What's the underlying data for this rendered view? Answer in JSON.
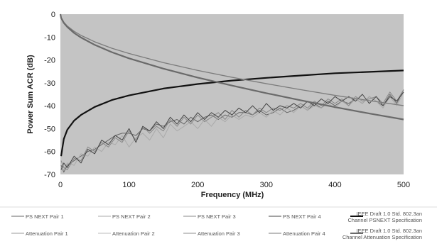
{
  "chart_data": {
    "type": "line",
    "title": "",
    "xlabel": "Frequency (MHz)",
    "ylabel": "Power Sum ACR (dB)",
    "xlim": [
      0,
      500
    ],
    "ylim": [
      -70,
      0
    ],
    "x_ticks": [
      "0",
      "100",
      "200",
      "300",
      "400",
      "500"
    ],
    "y_ticks": [
      "0",
      "-10",
      "-20",
      "-30",
      "-40",
      "-50",
      "-60",
      "-70"
    ],
    "grid": false,
    "background_color": "#c4c4c4",
    "legend_position": "bottom",
    "series": [
      {
        "name": "PS NEXT Pair 1",
        "color": "#666666",
        "values": [
          [
            1,
            -66
          ],
          [
            5,
            -69
          ],
          [
            10,
            -66
          ],
          [
            20,
            -64
          ],
          [
            30,
            -62
          ],
          [
            40,
            -60
          ],
          [
            50,
            -59
          ],
          [
            60,
            -57
          ],
          [
            70,
            -55
          ],
          [
            80,
            -53
          ],
          [
            90,
            -52
          ],
          [
            100,
            -52
          ],
          [
            110,
            -53
          ],
          [
            120,
            -50
          ],
          [
            130,
            -51
          ],
          [
            140,
            -48
          ],
          [
            150,
            -49
          ],
          [
            160,
            -47
          ],
          [
            170,
            -46
          ],
          [
            180,
            -48
          ],
          [
            190,
            -45
          ],
          [
            200,
            -47
          ],
          [
            210,
            -45
          ],
          [
            220,
            -44
          ],
          [
            230,
            -46
          ],
          [
            240,
            -44
          ],
          [
            250,
            -45
          ],
          [
            260,
            -43
          ],
          [
            270,
            -43
          ],
          [
            280,
            -44
          ],
          [
            290,
            -42
          ],
          [
            300,
            -44
          ],
          [
            310,
            -43
          ],
          [
            320,
            -41
          ],
          [
            330,
            -43
          ],
          [
            340,
            -42
          ],
          [
            350,
            -40
          ],
          [
            360,
            -42
          ],
          [
            370,
            -39
          ],
          [
            380,
            -41
          ],
          [
            390,
            -38
          ],
          [
            400,
            -40
          ],
          [
            410,
            -38
          ],
          [
            420,
            -39
          ],
          [
            430,
            -37
          ],
          [
            440,
            -39
          ],
          [
            450,
            -36
          ],
          [
            460,
            -38
          ],
          [
            470,
            -40
          ],
          [
            480,
            -35
          ],
          [
            490,
            -39
          ],
          [
            500,
            -33
          ]
        ]
      },
      {
        "name": "PS NEXT Pair 2",
        "color": "#aaaaaa",
        "values": [
          [
            1,
            -67
          ],
          [
            5,
            -68
          ],
          [
            10,
            -65
          ],
          [
            20,
            -66
          ],
          [
            30,
            -61
          ],
          [
            40,
            -62
          ],
          [
            50,
            -58
          ],
          [
            60,
            -60
          ],
          [
            70,
            -56
          ],
          [
            80,
            -57
          ],
          [
            90,
            -53
          ],
          [
            100,
            -58
          ],
          [
            110,
            -54
          ],
          [
            120,
            -52
          ],
          [
            130,
            -55
          ],
          [
            140,
            -50
          ],
          [
            150,
            -54
          ],
          [
            160,
            -48
          ],
          [
            170,
            -51
          ],
          [
            180,
            -49
          ],
          [
            190,
            -47
          ],
          [
            200,
            -50
          ],
          [
            210,
            -46
          ],
          [
            220,
            -49
          ],
          [
            230,
            -45
          ],
          [
            240,
            -47
          ],
          [
            250,
            -44
          ],
          [
            260,
            -46
          ],
          [
            270,
            -44
          ],
          [
            280,
            -45
          ],
          [
            290,
            -43
          ],
          [
            300,
            -45
          ],
          [
            310,
            -42
          ],
          [
            320,
            -44
          ],
          [
            330,
            -41
          ],
          [
            340,
            -43
          ],
          [
            350,
            -40
          ],
          [
            360,
            -42
          ],
          [
            370,
            -40
          ],
          [
            380,
            -41
          ],
          [
            390,
            -39
          ],
          [
            400,
            -41
          ],
          [
            410,
            -38
          ],
          [
            420,
            -40
          ],
          [
            430,
            -37
          ],
          [
            440,
            -39
          ],
          [
            450,
            -36
          ],
          [
            460,
            -38
          ],
          [
            470,
            -41
          ],
          [
            480,
            -36
          ],
          [
            490,
            -40
          ],
          [
            500,
            -34
          ]
        ]
      },
      {
        "name": "PS NEXT Pair 3",
        "color": "#888888",
        "values": [
          [
            1,
            -64
          ],
          [
            5,
            -67
          ],
          [
            10,
            -68
          ],
          [
            20,
            -63
          ],
          [
            30,
            -64
          ],
          [
            40,
            -58
          ],
          [
            50,
            -60
          ],
          [
            60,
            -56
          ],
          [
            70,
            -58
          ],
          [
            80,
            -54
          ],
          [
            90,
            -56
          ],
          [
            100,
            -51
          ],
          [
            110,
            -55
          ],
          [
            120,
            -49
          ],
          [
            130,
            -52
          ],
          [
            140,
            -49
          ],
          [
            150,
            -51
          ],
          [
            160,
            -46
          ],
          [
            170,
            -49
          ],
          [
            180,
            -45
          ],
          [
            190,
            -48
          ],
          [
            200,
            -44
          ],
          [
            210,
            -47
          ],
          [
            220,
            -45
          ],
          [
            230,
            -43
          ],
          [
            240,
            -46
          ],
          [
            250,
            -42
          ],
          [
            260,
            -45
          ],
          [
            270,
            -42
          ],
          [
            280,
            -44
          ],
          [
            290,
            -41
          ],
          [
            300,
            -43
          ],
          [
            310,
            -41
          ],
          [
            320,
            -42
          ],
          [
            330,
            -40
          ],
          [
            340,
            -41
          ],
          [
            350,
            -39
          ],
          [
            360,
            -41
          ],
          [
            370,
            -38
          ],
          [
            380,
            -40
          ],
          [
            390,
            -37
          ],
          [
            400,
            -39
          ],
          [
            410,
            -37
          ],
          [
            420,
            -40
          ],
          [
            430,
            -36
          ],
          [
            440,
            -38
          ],
          [
            450,
            -37
          ],
          [
            460,
            -36
          ],
          [
            470,
            -39
          ],
          [
            480,
            -34
          ],
          [
            490,
            -38
          ],
          [
            500,
            -33
          ]
        ]
      },
      {
        "name": "PS NEXT Pair 4",
        "color": "#444444",
        "values": [
          [
            1,
            -68
          ],
          [
            5,
            -65
          ],
          [
            10,
            -67
          ],
          [
            20,
            -62
          ],
          [
            30,
            -65
          ],
          [
            40,
            -59
          ],
          [
            50,
            -61
          ],
          [
            60,
            -55
          ],
          [
            70,
            -57
          ],
          [
            80,
            -53
          ],
          [
            90,
            -55
          ],
          [
            100,
            -50
          ],
          [
            110,
            -56
          ],
          [
            120,
            -49
          ],
          [
            130,
            -51
          ],
          [
            140,
            -47
          ],
          [
            150,
            -50
          ],
          [
            160,
            -45
          ],
          [
            170,
            -48
          ],
          [
            180,
            -44
          ],
          [
            190,
            -47
          ],
          [
            200,
            -43
          ],
          [
            210,
            -46
          ],
          [
            220,
            -43
          ],
          [
            230,
            -45
          ],
          [
            240,
            -42
          ],
          [
            250,
            -44
          ],
          [
            260,
            -41
          ],
          [
            270,
            -43
          ],
          [
            280,
            -40
          ],
          [
            290,
            -43
          ],
          [
            300,
            -39
          ],
          [
            310,
            -42
          ],
          [
            320,
            -40
          ],
          [
            330,
            -41
          ],
          [
            340,
            -39
          ],
          [
            350,
            -41
          ],
          [
            360,
            -38
          ],
          [
            370,
            -40
          ],
          [
            380,
            -37
          ],
          [
            390,
            -39
          ],
          [
            400,
            -36
          ],
          [
            410,
            -38
          ],
          [
            420,
            -36
          ],
          [
            430,
            -38
          ],
          [
            440,
            -35
          ],
          [
            450,
            -39
          ],
          [
            460,
            -36
          ],
          [
            470,
            -40
          ],
          [
            480,
            -36
          ],
          [
            490,
            -38
          ],
          [
            500,
            -34
          ]
        ]
      },
      {
        "name": "IEEE Draft 1.0 Std. 802.3an Channel PSNEXT Specification",
        "color": "#111111",
        "values": [
          [
            1,
            -62
          ],
          [
            5,
            -54.5
          ],
          [
            10,
            -50.5
          ],
          [
            20,
            -46.5
          ],
          [
            30,
            -44
          ],
          [
            50,
            -40.5
          ],
          [
            75,
            -37.5
          ],
          [
            100,
            -35.5
          ],
          [
            150,
            -32.5
          ],
          [
            200,
            -30.5
          ],
          [
            250,
            -29
          ],
          [
            300,
            -27.8
          ],
          [
            350,
            -26.8
          ],
          [
            400,
            -25.8
          ],
          [
            450,
            -25.2
          ],
          [
            500,
            -24.6
          ]
        ]
      },
      {
        "name": "Attenuation Pair 1",
        "color": "#999999",
        "values": [
          [
            0,
            0
          ],
          [
            1,
            -1.5
          ],
          [
            5,
            -3.5
          ],
          [
            10,
            -5.2
          ],
          [
            20,
            -7.5
          ],
          [
            30,
            -9.3
          ],
          [
            50,
            -12.1
          ],
          [
            75,
            -14.9
          ],
          [
            100,
            -17.2
          ],
          [
            150,
            -21.2
          ],
          [
            200,
            -24.6
          ],
          [
            250,
            -27.6
          ],
          [
            300,
            -30.4
          ],
          [
            350,
            -33.0
          ],
          [
            400,
            -35.5
          ],
          [
            450,
            -37.8
          ],
          [
            500,
            -40.0
          ]
        ]
      },
      {
        "name": "Attenuation Pair 2",
        "color": "#bbbbbb",
        "values": [
          [
            0,
            0
          ],
          [
            1,
            -1.6
          ],
          [
            5,
            -3.6
          ],
          [
            10,
            -5.3
          ],
          [
            20,
            -7.6
          ],
          [
            30,
            -9.4
          ],
          [
            50,
            -12.2
          ],
          [
            75,
            -15.0
          ],
          [
            100,
            -17.3
          ],
          [
            150,
            -21.3
          ],
          [
            200,
            -24.7
          ],
          [
            250,
            -27.7
          ],
          [
            300,
            -30.5
          ],
          [
            350,
            -33.1
          ],
          [
            400,
            -35.6
          ],
          [
            450,
            -37.9
          ],
          [
            500,
            -40.1
          ]
        ]
      },
      {
        "name": "Attenuation Pair 3",
        "color": "#8c8c8c",
        "values": [
          [
            0,
            0
          ],
          [
            1,
            -1.4
          ],
          [
            5,
            -3.4
          ],
          [
            10,
            -5.1
          ],
          [
            20,
            -7.4
          ],
          [
            30,
            -9.2
          ],
          [
            50,
            -12.0
          ],
          [
            75,
            -14.8
          ],
          [
            100,
            -17.1
          ],
          [
            150,
            -21.1
          ],
          [
            200,
            -24.5
          ],
          [
            250,
            -27.5
          ],
          [
            300,
            -30.3
          ],
          [
            350,
            -32.9
          ],
          [
            400,
            -35.4
          ],
          [
            450,
            -37.7
          ],
          [
            500,
            -39.9
          ]
        ]
      },
      {
        "name": "Attenuation Pair 4",
        "color": "#7a7a7a",
        "values": [
          [
            0,
            0
          ],
          [
            1,
            -1.5
          ],
          [
            5,
            -3.5
          ],
          [
            10,
            -5.2
          ],
          [
            20,
            -7.5
          ],
          [
            30,
            -9.3
          ],
          [
            50,
            -12.1
          ],
          [
            75,
            -14.9
          ],
          [
            100,
            -17.2
          ],
          [
            150,
            -21.2
          ],
          [
            200,
            -24.6
          ],
          [
            250,
            -27.6
          ],
          [
            300,
            -30.4
          ],
          [
            350,
            -33.0
          ],
          [
            400,
            -35.5
          ],
          [
            450,
            -37.8
          ],
          [
            500,
            -40.0
          ]
        ]
      },
      {
        "name": "IEEE Draft 1.0 Std. 802.3an Channel Attenuation Specification",
        "color": "#6a6a6a",
        "values": [
          [
            0,
            0
          ],
          [
            1,
            -1.6
          ],
          [
            5,
            -3.8
          ],
          [
            10,
            -5.6
          ],
          [
            20,
            -8.2
          ],
          [
            30,
            -10.2
          ],
          [
            50,
            -13.4
          ],
          [
            75,
            -16.6
          ],
          [
            100,
            -19.3
          ],
          [
            150,
            -23.8
          ],
          [
            200,
            -27.7
          ],
          [
            250,
            -31.2
          ],
          [
            300,
            -34.5
          ],
          [
            350,
            -37.6
          ],
          [
            400,
            -40.6
          ],
          [
            450,
            -43.4
          ],
          [
            500,
            -46.0
          ]
        ]
      }
    ]
  }
}
